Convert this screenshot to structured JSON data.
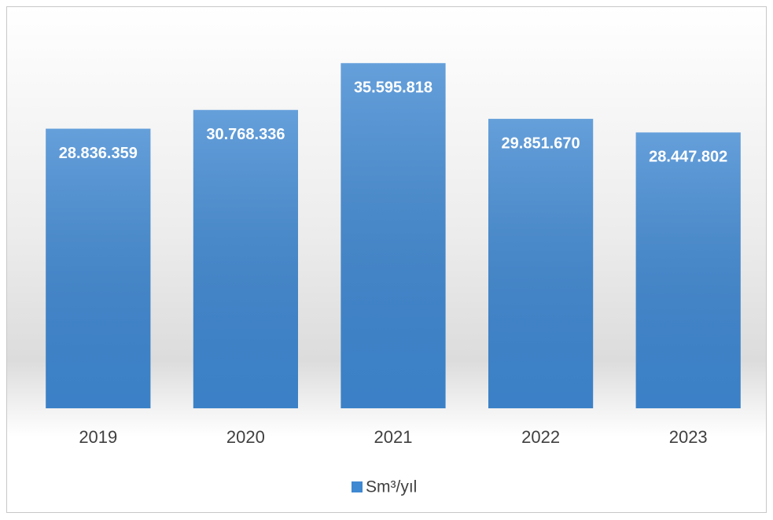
{
  "chart_data": {
    "type": "bar",
    "categories": [
      "2019",
      "2020",
      "2021",
      "2022",
      "2023"
    ],
    "series": [
      {
        "name": "Sm³/yıl",
        "color": "#3f88d2",
        "values": [
          28836359,
          30768336,
          35595818,
          29851670,
          28447802
        ],
        "value_labels": [
          "28.836.359",
          "30.768.336",
          "35.595.818",
          "29.851.670",
          "28.447.802"
        ]
      }
    ],
    "ylim": [
      0,
      40000000
    ],
    "legend": "bottom"
  }
}
